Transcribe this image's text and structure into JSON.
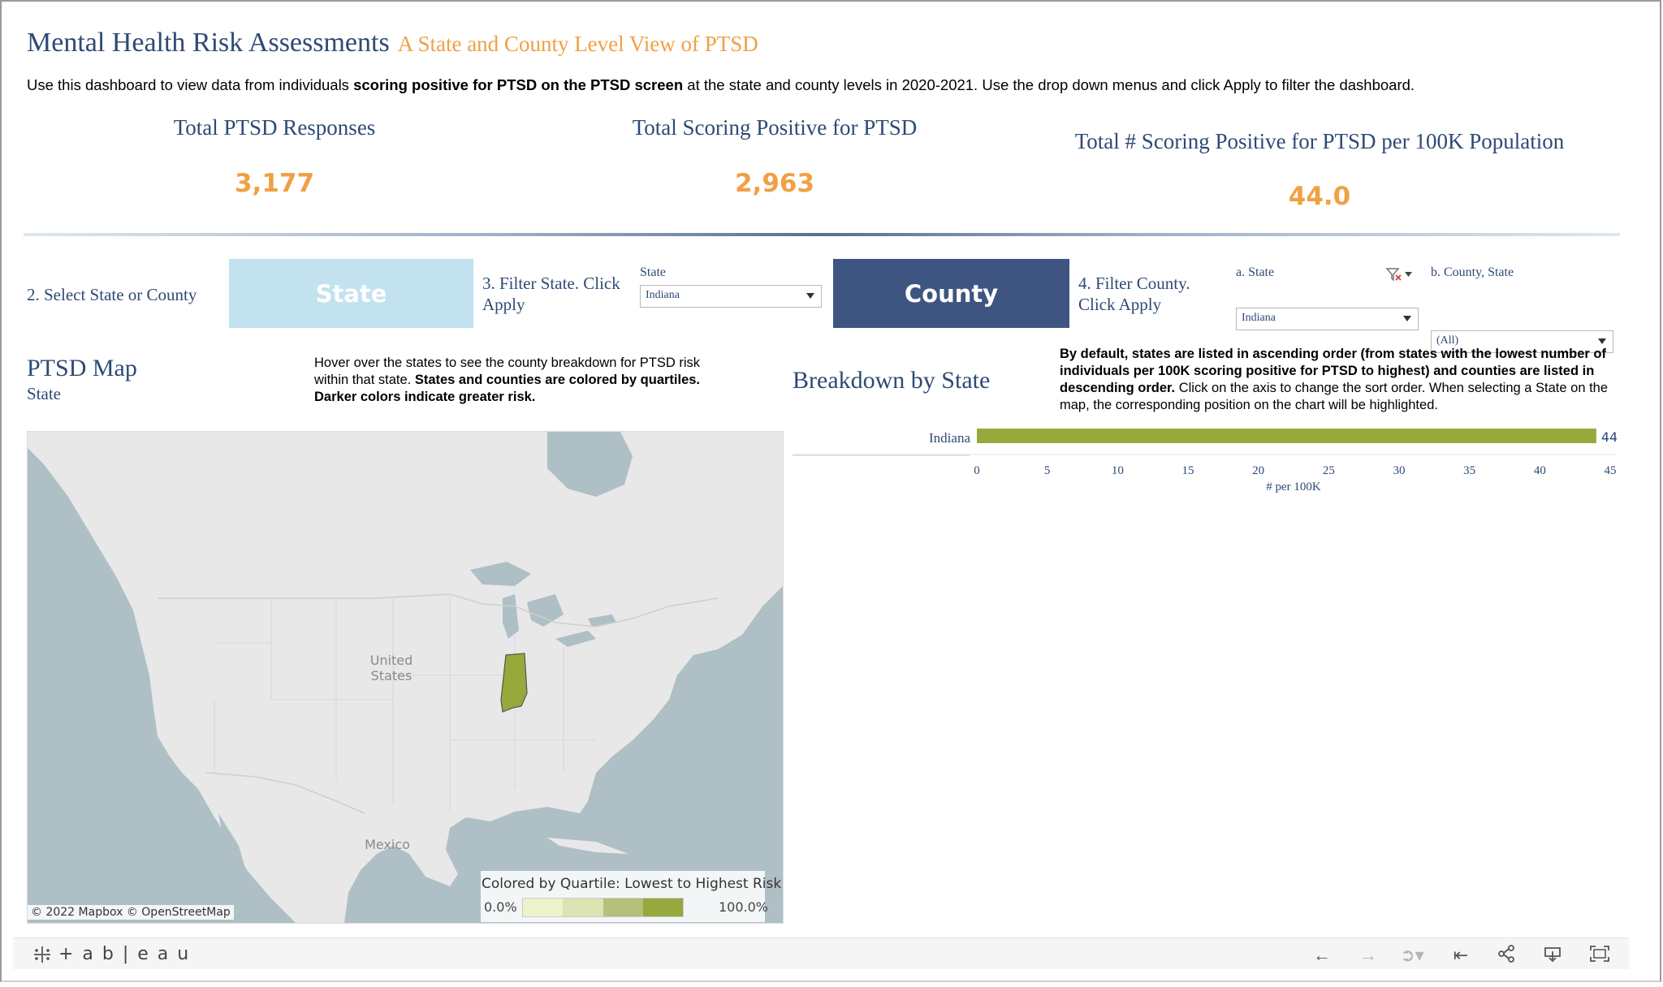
{
  "header": {
    "title": "Mental Health Risk Assessments",
    "subtitle": "A State and County Level View of PTSD",
    "intro_pre": "Use this dashboard to view data from individuals ",
    "intro_bold": "scoring positive for PTSD on the PTSD screen",
    "intro_post": " at the state and county levels in 2020-2021. Use the drop down menus and click Apply to filter the dashboard."
  },
  "kpis": [
    {
      "label": "Total PTSD Responses",
      "value": "3,177"
    },
    {
      "label": "Total Scoring Positive for PTSD",
      "value": "2,963"
    },
    {
      "label": "Total # Scoring Positive for PTSD per 100K Population",
      "value": "44.0"
    }
  ],
  "controls": {
    "select_label": "2. Select State or County",
    "state_button": "State",
    "county_button": "County",
    "filter_state_label": "3. Filter State. Click Apply",
    "state_dd_label": "State",
    "state_dd_value": "Indiana",
    "filter_county_label": "4. Filter County. Click Apply",
    "a_state_label": "a. State",
    "a_state_value": "Indiana",
    "b_county_label": "b. County, State",
    "b_county_value": "(All)"
  },
  "map_section": {
    "title": "PTSD Map",
    "subtitle": "State",
    "note_pre": "Hover over the states to see the county breakdown for PTSD risk within that state. ",
    "note_bold": "States and counties are colored by quartiles. Darker colors indicate greater risk.",
    "label_us_1": "United",
    "label_us_2": "States",
    "label_mexico": "Mexico",
    "attribution": "© 2022 Mapbox  © OpenStreetMap",
    "legend_title": "Colored by Quartile: Lowest to Highest Risk",
    "legend_min": "0.0%",
    "legend_max": "100.0%",
    "legend_colors": [
      "#eef2c9",
      "#dce3b3",
      "#b5c07a",
      "#97a83c"
    ]
  },
  "breakdown": {
    "title": "Breakdown by State",
    "note_bold": "By default, states are listed in ascending order (from states with the lowest number of individuals per 100K scoring positive for PTSD to highest) and counties are listed in descending order.",
    "note_rest": " Click on the axis to change the sort order. When selecting a State on the map, the corresponding position on the chart will be highlighted."
  },
  "chart_data": {
    "type": "bar",
    "orientation": "horizontal",
    "categories": [
      "Indiana"
    ],
    "values": [
      44.01
    ],
    "value_labels": [
      "44.01"
    ],
    "xlabel": "# per 100K",
    "xlim": [
      0,
      45
    ],
    "xticks": [
      0,
      5,
      10,
      15,
      20,
      25,
      30,
      35,
      40,
      45
    ],
    "bar_color": "#98a83a"
  },
  "footer": {
    "brand": "+ a b | e a u"
  },
  "colors": {
    "navy": "#2e4a75",
    "orange": "#f0a044",
    "state_button_bg": "#c2e2ef",
    "county_button_bg": "#3d5580",
    "highlight_state": "#98a83a"
  }
}
